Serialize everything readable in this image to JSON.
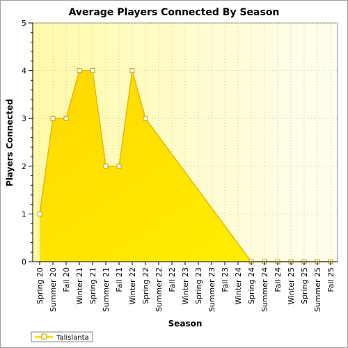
{
  "chart_data": {
    "type": "area",
    "title": "Average Players Connected By Season",
    "xlabel": "Season",
    "ylabel": "Players Connected",
    "ylim": [
      0,
      5
    ],
    "yticks": [
      0,
      1,
      2,
      3,
      4,
      5
    ],
    "grid": true,
    "legend_position": "bottom-left",
    "categories": [
      "Spring 20",
      "Summer 20",
      "Fall 20",
      "Winter 21",
      "Spring 21",
      "Summer 21",
      "Fall 21",
      "Winter 22",
      "Spring 22",
      "Summer 22",
      "Fall 22",
      "Winter 23",
      "Spring 23",
      "Summer 23",
      "Fall 23",
      "Winter 24",
      "Spring 24",
      "Summer 24",
      "Fall 24",
      "Winter 25",
      "Spring 25",
      "Summer 25",
      "Fall 25"
    ],
    "series": [
      {
        "name": "Talislanta",
        "color": "#ffd700",
        "values": [
          1,
          3,
          3,
          4,
          4,
          2,
          2,
          4,
          3,
          null,
          null,
          null,
          null,
          null,
          null,
          null,
          0,
          0,
          0,
          0,
          0,
          0,
          0
        ]
      }
    ]
  }
}
